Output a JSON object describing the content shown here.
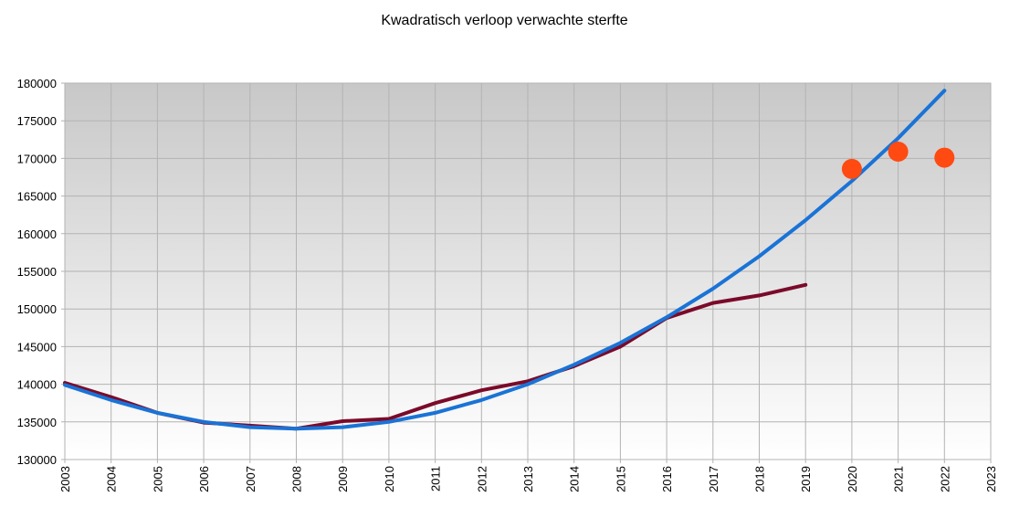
{
  "chart_data": {
    "type": "line",
    "title": "Kwadratisch verloop verwachte sterfte",
    "xlabel": "",
    "ylabel": "",
    "xlim": [
      2003,
      2023
    ],
    "ylim": [
      130000,
      180000
    ],
    "x_ticks": [
      "2003",
      "2004",
      "2005",
      "2006",
      "2007",
      "2008",
      "2009",
      "2010",
      "2011",
      "2012",
      "2013",
      "2014",
      "2015",
      "2016",
      "2017",
      "2018",
      "2019",
      "2020",
      "2021",
      "2022",
      "2023"
    ],
    "y_ticks": [
      "130000",
      "135000",
      "140000",
      "145000",
      "150000",
      "155000",
      "160000",
      "165000",
      "170000",
      "175000",
      "180000"
    ],
    "grid": true,
    "legend": "none",
    "background_gradient": [
      "#c8c8c8",
      "#ffffff"
    ],
    "series": [
      {
        "kind": "line",
        "color": "#7b0a2a",
        "x": [
          2003,
          2004,
          2005,
          2006,
          2007,
          2008,
          2009,
          2010,
          2011,
          2012,
          2013,
          2014,
          2015,
          2016,
          2017,
          2018,
          2019
        ],
        "values": [
          140200,
          138300,
          136200,
          134900,
          134500,
          134100,
          135100,
          135400,
          137500,
          139200,
          140400,
          142400,
          145000,
          148800,
          150800,
          151800,
          153200
        ]
      },
      {
        "kind": "line",
        "color": "#1a73d6",
        "x": [
          2003,
          2004,
          2005,
          2006,
          2007,
          2008,
          2009,
          2010,
          2011,
          2012,
          2013,
          2014,
          2015,
          2016,
          2017,
          2018,
          2019,
          2020,
          2021,
          2022
        ],
        "values": [
          139900,
          137900,
          136200,
          135000,
          134300,
          134100,
          134300,
          135000,
          136200,
          137900,
          140000,
          142600,
          145500,
          148900,
          152700,
          157000,
          161800,
          167000,
          172700,
          179000
        ]
      },
      {
        "kind": "scatter",
        "color": "#ff4a12",
        "x": [
          2020,
          2021,
          2022
        ],
        "values": [
          168600,
          170900,
          170100
        ]
      }
    ]
  }
}
